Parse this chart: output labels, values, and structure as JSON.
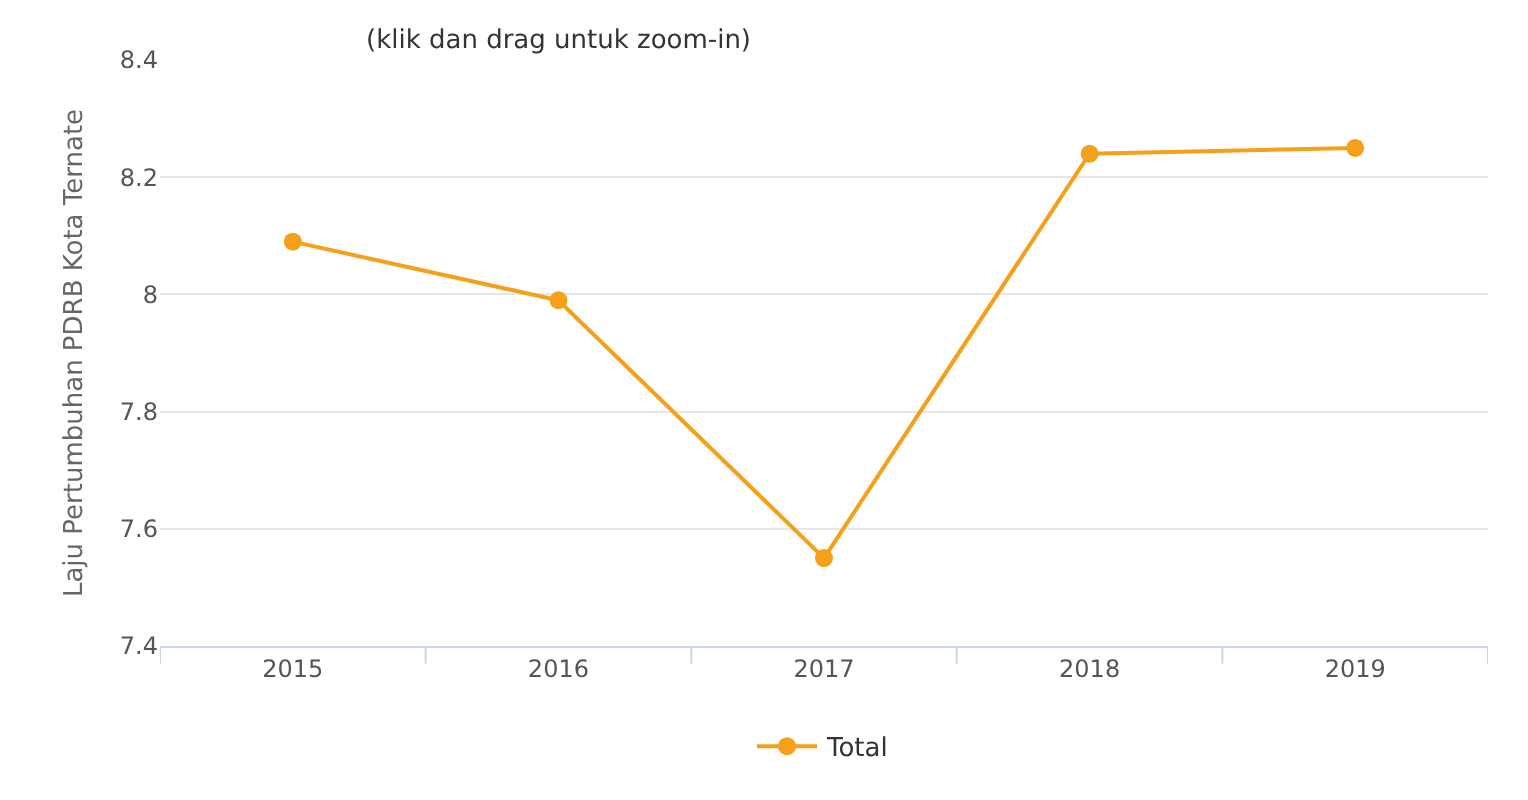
{
  "chart_data": {
    "type": "line",
    "subtitle": "(klik dan drag untuk zoom-in)",
    "ylabel": "Laju Pertumbuhan PDRB Kota Ternate",
    "categories": [
      "2015",
      "2016",
      "2017",
      "2018",
      "2019"
    ],
    "series": [
      {
        "name": "Total",
        "color": "#f5a01a",
        "values": [
          8.09,
          7.99,
          7.55,
          8.24,
          8.25
        ]
      }
    ],
    "ylim": [
      7.4,
      8.4
    ],
    "yticks": [
      7.4,
      7.6,
      7.8,
      8,
      8.2,
      8.4
    ],
    "grid": "y",
    "legend": "bottom",
    "marker": "circle",
    "line_style": "solid"
  }
}
